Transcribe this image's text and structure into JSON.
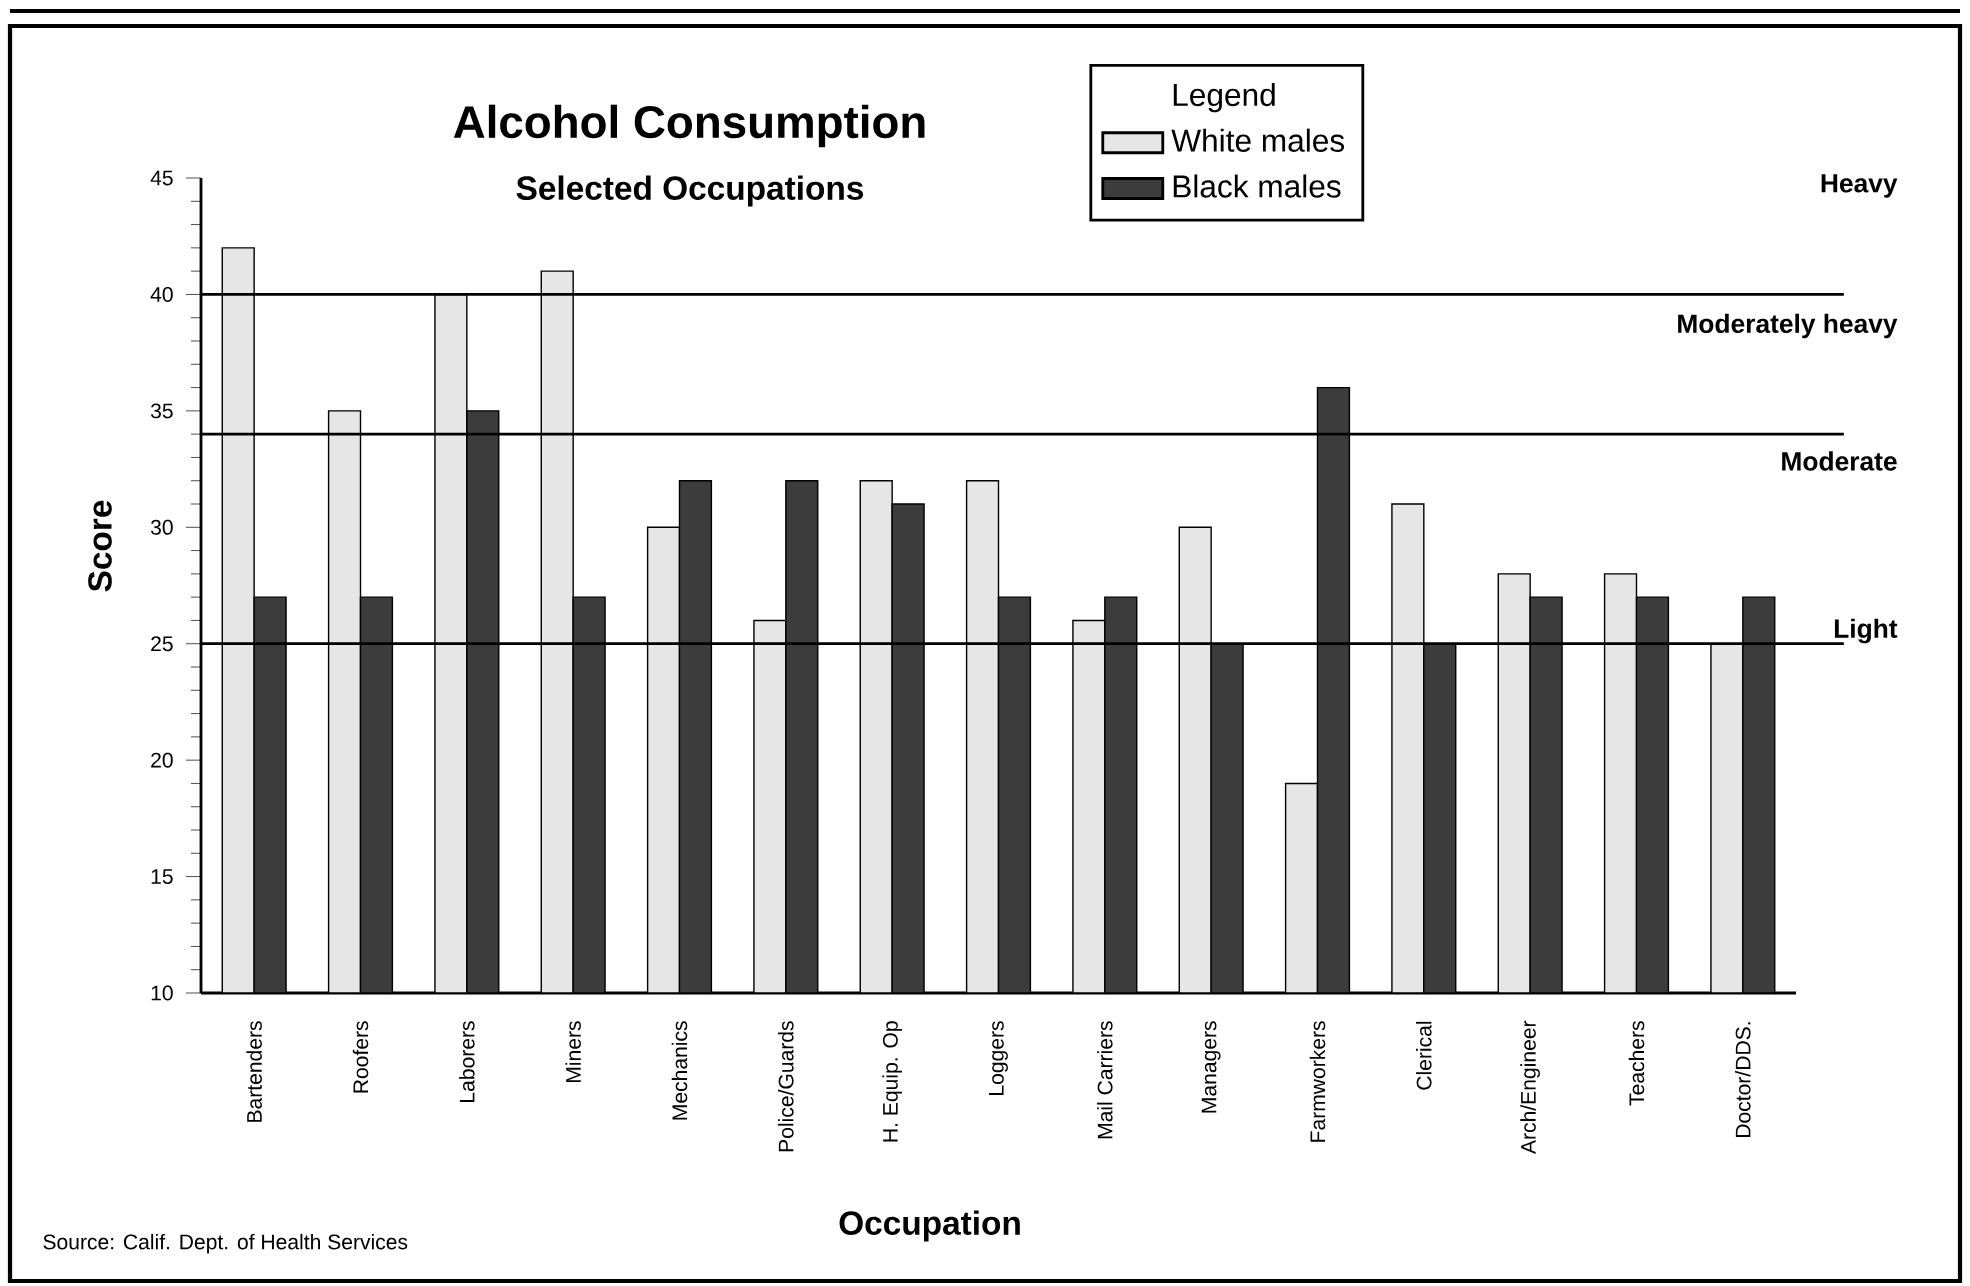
{
  "chart_data": {
    "type": "bar",
    "title": "Alcohol Consumption",
    "subtitle": "Selected Occupations",
    "xlabel": "Occupation",
    "ylabel": "Score",
    "legend_title": "Legend",
    "categories": [
      "Bartenders",
      "Roofers",
      "Laborers",
      "Miners",
      "Mechanics",
      "Police/Guards",
      "H. Equip. Op",
      "Loggers",
      "Mail  Carriers",
      "Managers",
      "Farmworkers",
      "Clerical",
      "Arch/Engineer",
      "Teachers",
      "Doctor/DDS."
    ],
    "series": [
      {
        "name": "White males",
        "color": "#e6e6e6",
        "values": [
          42,
          35,
          40,
          41,
          30,
          26,
          32,
          32,
          26,
          30,
          19,
          31,
          28,
          28,
          25
        ]
      },
      {
        "name": "Black males",
        "color": "#3c3c3c",
        "values": [
          27,
          27,
          35,
          27,
          32,
          32,
          31,
          27,
          27,
          25,
          36,
          25,
          27,
          27,
          27
        ]
      }
    ],
    "ylim": [
      10,
      45
    ],
    "yticks": [
      10,
      15,
      20,
      25,
      30,
      35,
      40,
      45
    ],
    "ref_lines": [
      {
        "axis": "y",
        "value": 40
      },
      {
        "axis": "y",
        "value": 34
      },
      {
        "axis": "y",
        "value": 25
      }
    ],
    "legend": "top right",
    "grid": false,
    "annotations": [
      "Heavy",
      "Moderately heavy",
      "Moderate",
      "Light",
      "Source: Calif. Dept. of Health Services"
    ]
  }
}
